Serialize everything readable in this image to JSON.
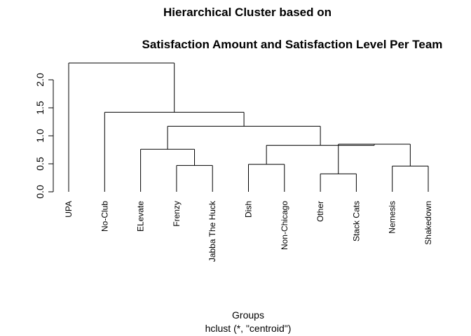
{
  "chart_data": {
    "type": "dendrogram",
    "title": "Hierarchical Cluster based on",
    "subtitle": "Satisfaction Amount and Satisfaction Level Per Team",
    "xlabel": "Groups",
    "sublabel": "hclust (*, \"centroid\")",
    "ylabel": "",
    "ylim": [
      0,
      2.3
    ],
    "y_ticks": [
      0.0,
      0.5,
      1.0,
      1.5,
      2.0
    ],
    "y_tick_labels": [
      "0.0",
      "0.5",
      "1.0",
      "1.5",
      "2.0"
    ],
    "leaves": [
      "UPA",
      "No-Club",
      "ELevate",
      "Frenzy",
      "Jabba The Huck",
      "Dish",
      "Non-Chicago",
      "Other",
      "Stack Cats",
      "Nemesis",
      "Shakedown"
    ],
    "merges": [
      {
        "left": 3,
        "right": 4,
        "height": 0.47
      },
      {
        "left": 5,
        "right": 6,
        "height": 0.49
      },
      {
        "left": 7,
        "right": 8,
        "height": 0.32
      },
      {
        "left": 9,
        "right": 10,
        "height": 0.46
      },
      {
        "left": 2,
        "right": "m0",
        "height": 0.76
      },
      {
        "left": "m2",
        "right": "m3",
        "height": 0.85
      },
      {
        "left": "m1",
        "right": "m5",
        "height": 0.83
      },
      {
        "left": "m4",
        "right": "m6",
        "height": 1.17
      },
      {
        "left": 1,
        "right": "m7",
        "height": 1.42
      },
      {
        "left": 0,
        "right": "m8",
        "height": 2.3
      }
    ]
  }
}
